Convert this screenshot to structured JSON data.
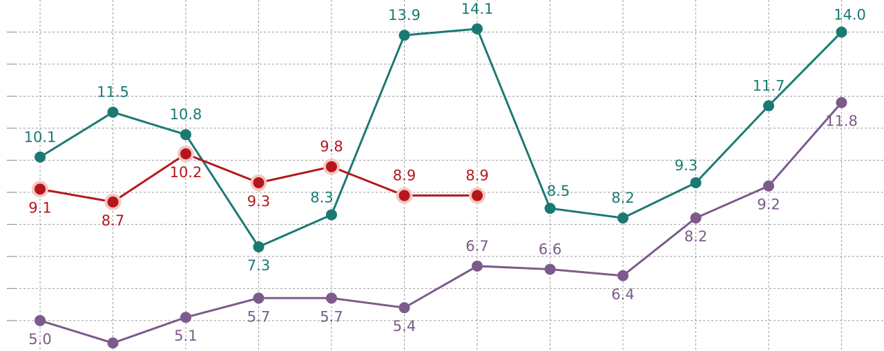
{
  "chart_data": {
    "type": "line",
    "categories": [
      null,
      null,
      null,
      null,
      null,
      null,
      null,
      null,
      null,
      null,
      null,
      null
    ],
    "series": [
      {
        "color": "#1a7a72",
        "values": [
          10.1,
          11.5,
          10.8,
          7.3,
          8.3,
          13.9,
          14.1,
          8.5,
          8.2,
          9.3,
          11.7,
          14.0
        ],
        "value_labels": [
          "10.1",
          "11.5",
          "10.8",
          "7.3",
          "8.3",
          "13.9",
          "14.1",
          "8.5",
          "8.2",
          "9.3",
          "11.7",
          "14.0"
        ]
      },
      {
        "color": "#b5161d",
        "values": [
          9.1,
          8.7,
          10.2,
          9.3,
          9.8,
          8.9,
          8.9,
          null,
          null,
          null,
          null,
          null
        ],
        "value_labels": [
          "9.1",
          "8.7",
          "10.2",
          "9.3",
          "9.8",
          "8.9",
          "8.9",
          null,
          null,
          null,
          null,
          null
        ]
      },
      {
        "color": "#7c5a8a",
        "values": [
          5.0,
          4.3,
          5.1,
          5.7,
          5.7,
          5.4,
          6.7,
          6.6,
          6.4,
          8.2,
          9.2,
          11.8
        ],
        "value_labels": [
          "5.0",
          null,
          "5.1",
          "5.7",
          "5.7",
          "5.4",
          "6.7",
          "6.6",
          "6.4",
          "8.2",
          "9.2",
          "11.8"
        ]
      }
    ],
    "ylim": [
      4.05,
      15.0
    ],
    "yticks": [
      5,
      6,
      7,
      8,
      9,
      10,
      11,
      12,
      13,
      14
    ],
    "grid": true
  }
}
